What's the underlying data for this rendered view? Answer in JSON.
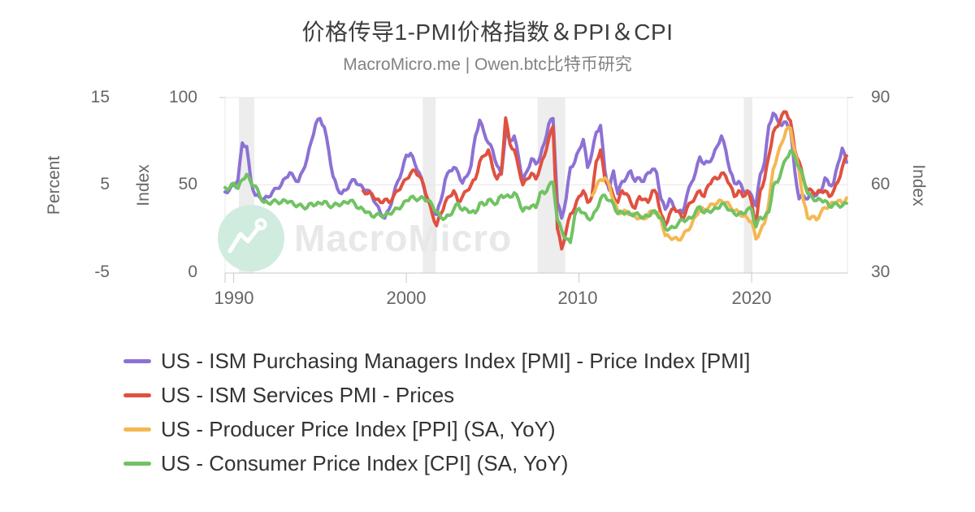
{
  "header": {
    "title": "价格传导1-PMI价格指数＆PPI＆CPI",
    "subtitle": "MacroMicro.me | Owen.btc比特币研究"
  },
  "watermark": {
    "text": "MacroMicro"
  },
  "colors": {
    "pmi_manufacturing": "#8d71d4",
    "pmi_services": "#e05140",
    "ppi": "#f4b852",
    "cpi": "#71c263",
    "recession_band": "#ededed",
    "gridline": "#e8e8e8",
    "axis_line": "#c9c9c9",
    "tick_text": "#666666",
    "watermark_circle": "#cfecdf",
    "watermark_text": "#e8e8e8"
  },
  "axes": {
    "left_percent": {
      "label": "Percent",
      "ticks": [
        "15",
        "5",
        "-5"
      ],
      "range": [
        -5,
        15
      ]
    },
    "left_index": {
      "label": "Index",
      "ticks": [
        "100",
        "50",
        "0"
      ],
      "range": [
        0,
        100
      ]
    },
    "right_index": {
      "label": "Index",
      "ticks": [
        "90",
        "60",
        "30"
      ],
      "range": [
        30,
        90
      ]
    },
    "x": {
      "ticks": [
        "1990",
        "2000",
        "2010",
        "2020"
      ],
      "range": [
        1989.5,
        2025.55
      ]
    }
  },
  "legend": {
    "items": [
      {
        "label": "US - ISM Purchasing Managers Index [PMI] - Price Index [PMI]",
        "color": "#8d71d4"
      },
      {
        "label": "US - ISM Services PMI - Prices",
        "color": "#e05140"
      },
      {
        "label": "US - Producer Price Index [PPI] (SA, YoY)",
        "color": "#f4b852"
      },
      {
        "label": "US - Consumer Price Index [CPI] (SA, YoY)",
        "color": "#71c263"
      }
    ]
  },
  "chart_data": {
    "type": "line",
    "title": "价格传导1-PMI价格指数＆PPI＆CPI",
    "subtitle": "MacroMicro.me | Owen.btc比特币研究",
    "xlabel": "",
    "x_range": [
      1989.5,
      2025.55
    ],
    "x_ticks": [
      1990,
      2000,
      2010,
      2020
    ],
    "grid": "horizontal-only",
    "legend_position": "bottom-left",
    "recession_bands": [
      [
        1990.3,
        1991.2
      ],
      [
        2000.95,
        2001.7
      ],
      [
        2007.6,
        2009.2
      ],
      [
        2019.55,
        2020.05
      ]
    ],
    "series": [
      {
        "name": "US - ISM Purchasing Managers Index [PMI] - Price Index [PMI]",
        "data_name": "series-ism-manufacturing-pmi-prices",
        "color": "#8d71d4",
        "axis": "left_index",
        "unit": "Index (0-100)",
        "start_year": 1989.5,
        "interval_years": 0.25,
        "values": [
          46,
          47,
          50,
          53,
          74,
          72,
          52,
          44,
          43,
          42,
          43,
          46,
          48,
          50,
          54,
          57,
          54,
          52,
          58,
          65,
          75,
          85,
          88,
          83,
          70,
          55,
          48,
          45,
          47,
          51,
          53,
          50,
          48,
          47,
          44,
          39,
          34,
          31,
          36,
          44,
          52,
          58,
          67,
          68,
          62,
          57,
          49,
          41,
          36,
          33,
          41,
          53,
          58,
          60,
          57,
          51,
          55,
          61,
          78,
          87,
          80,
          74,
          70,
          61,
          56,
          80,
          75,
          78,
          66,
          52,
          58,
          65,
          62,
          66,
          74,
          85,
          88,
          40,
          31,
          42,
          60,
          63,
          70,
          76,
          60,
          68,
          80,
          84,
          58,
          47,
          58,
          45,
          52,
          54,
          58,
          52,
          54,
          52,
          57,
          59,
          57,
          42,
          36,
          42,
          37,
          35,
          34,
          44,
          51,
          57,
          66,
          62,
          63,
          66,
          72,
          78,
          70,
          58,
          51,
          52,
          47,
          46,
          44,
          38,
          56,
          63,
          84,
          91,
          87,
          84,
          86,
          82,
          58,
          42,
          44,
          42,
          45,
          44,
          46,
          54,
          50,
          51,
          62,
          71,
          63
        ]
      },
      {
        "name": "US - ISM Services PMI - Prices",
        "data_name": "series-ism-services-pmi-prices",
        "color": "#e05140",
        "axis": "right_index",
        "unit": "Index (30-90)",
        "start_year": 1997.5,
        "interval_years": 0.25,
        "values": [
          58,
          57,
          57,
          55,
          54,
          55,
          54,
          56,
          58,
          60,
          62,
          64,
          65,
          63,
          60,
          55,
          50,
          46,
          50,
          54,
          56,
          58,
          54,
          56,
          58,
          60,
          62,
          68,
          70,
          72,
          66,
          62,
          64,
          83,
          74,
          72,
          66,
          60,
          62,
          64,
          62,
          66,
          70,
          76,
          80,
          45,
          38,
          44,
          50,
          52,
          56,
          58,
          54,
          56,
          68,
          72,
          62,
          60,
          56,
          54,
          58,
          57,
          54,
          52,
          56,
          55,
          54,
          58,
          57,
          50,
          46,
          50,
          52,
          51,
          48,
          52,
          54,
          56,
          58,
          56,
          60,
          62,
          62,
          64,
          63,
          60,
          56,
          58,
          56,
          58,
          54,
          46,
          58,
          62,
          70,
          78,
          80,
          84,
          85,
          82,
          72,
          68,
          62,
          58,
          58,
          57,
          58,
          58,
          56,
          58,
          61,
          66,
          70
        ]
      },
      {
        "name": "US - Producer Price Index [PPI] (SA, YoY)",
        "data_name": "series-ppi-yoy",
        "color": "#f4b852",
        "axis": "left_percent",
        "unit": "Percent",
        "start_year": 2010.75,
        "interval_years": 0.25,
        "values": [
          3.8,
          4.8,
          5.6,
          5.8,
          5.0,
          3.2,
          2.0,
          1.8,
          2.0,
          1.6,
          1.4,
          1.2,
          1.1,
          1.6,
          2.0,
          1.9,
          1.1,
          -0.8,
          -1.0,
          -1.1,
          -1.3,
          -0.9,
          -0.2,
          0.3,
          1.4,
          2.2,
          2.2,
          2.4,
          2.8,
          2.9,
          3.2,
          3.0,
          2.6,
          2.0,
          1.9,
          1.4,
          1.2,
          0.8,
          -1.2,
          -0.3,
          0.6,
          3.0,
          6.8,
          8.4,
          9.8,
          11.3,
          11.5,
          8.8,
          6.6,
          3.2,
          1.2,
          1.4,
          1.0,
          1.8,
          2.4,
          2.6,
          3.0,
          3.2,
          2.9,
          3.5
        ]
      },
      {
        "name": "US - Consumer Price Index [CPI] (SA, YoY)",
        "data_name": "series-cpi-yoy",
        "color": "#71c263",
        "axis": "left_percent",
        "unit": "Percent",
        "start_year": 1989.5,
        "interval_years": 0.25,
        "values": [
          4.7,
          4.6,
          5.2,
          4.6,
          5.6,
          6.2,
          5.2,
          4.9,
          3.8,
          3.0,
          2.9,
          3.1,
          3.1,
          3.0,
          3.2,
          3.1,
          2.7,
          2.7,
          2.5,
          2.4,
          2.9,
          2.7,
          2.9,
          3.1,
          2.6,
          2.6,
          2.8,
          2.8,
          3.0,
          3.2,
          2.9,
          2.3,
          2.2,
          1.9,
          1.4,
          1.6,
          1.5,
          1.5,
          1.7,
          2.0,
          2.3,
          2.6,
          3.2,
          3.6,
          3.4,
          3.4,
          3.5,
          3.2,
          2.7,
          1.9,
          1.3,
          1.2,
          1.5,
          2.2,
          2.9,
          2.1,
          2.2,
          1.9,
          1.8,
          2.9,
          2.7,
          3.3,
          3.0,
          2.9,
          3.8,
          3.7,
          3.6,
          4.1,
          3.3,
          2.0,
          2.4,
          2.6,
          2.4,
          4.1,
          4.0,
          4.9,
          5.3,
          1.0,
          -0.2,
          -1.2,
          -1.6,
          1.5,
          2.3,
          1.8,
          1.2,
          1.2,
          2.1,
          3.4,
          3.8,
          3.2,
          2.8,
          1.7,
          1.9,
          1.8,
          1.6,
          1.7,
          1.5,
          1.3,
          1.4,
          2.0,
          1.7,
          1.2,
          0.0,
          0.0,
          0.1,
          0.6,
          1.0,
          1.0,
          1.2,
          1.9,
          2.5,
          1.8,
          2.0,
          2.1,
          2.3,
          2.8,
          2.6,
          2.1,
          1.7,
          1.7,
          1.7,
          2.2,
          2.2,
          0.2,
          1.3,
          1.3,
          1.9,
          4.9,
          5.3,
          6.8,
          8.0,
          8.9,
          8.2,
          7.0,
          5.8,
          4.0,
          3.6,
          3.2,
          3.3,
          3.2,
          2.5,
          2.8,
          2.7,
          2.6,
          2.9
        ]
      }
    ]
  }
}
